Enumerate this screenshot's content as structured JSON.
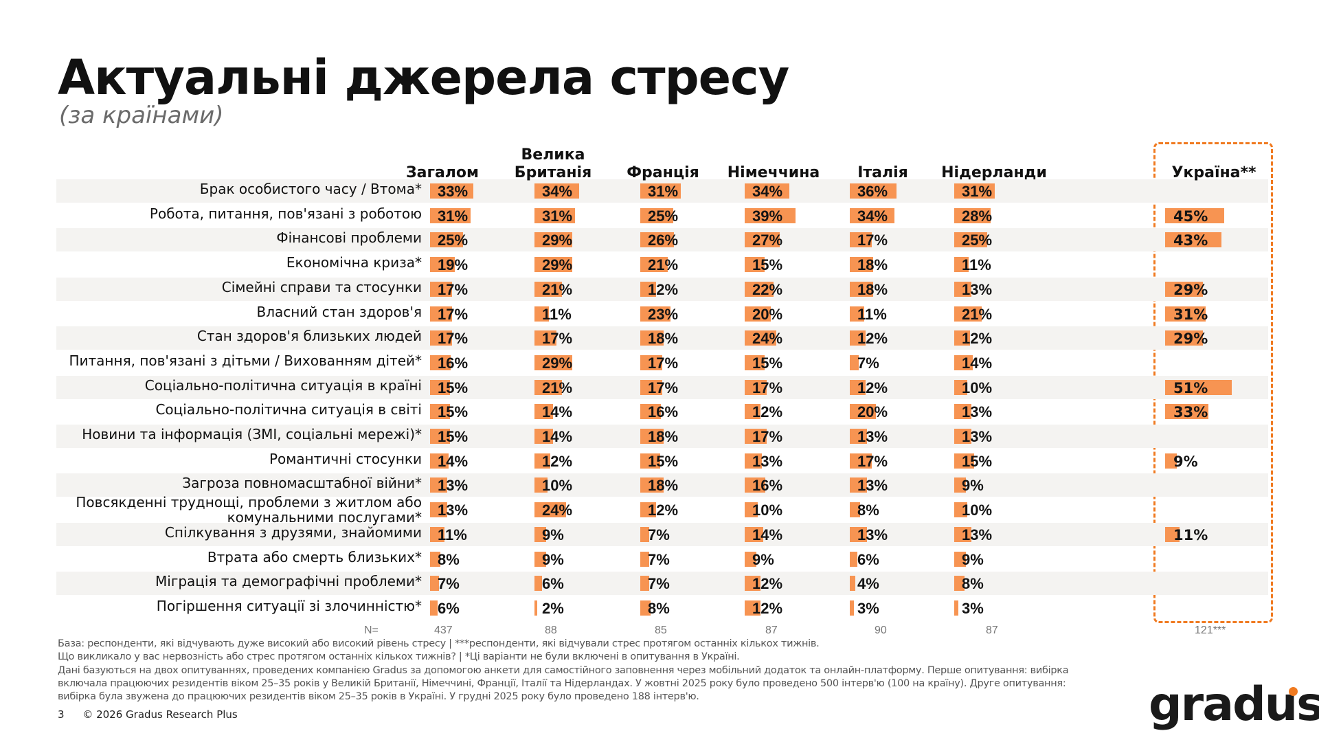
{
  "title": "Актуальні джерела стресу",
  "subtitle": "(за країнами)",
  "chart_data": {
    "type": "bar",
    "orientation": "horizontal",
    "columns": [
      "Загалом",
      "Велика Британія",
      "Франція",
      "Німеччина",
      "Італія",
      "Нідерланди",
      "Україна**"
    ],
    "categories": [
      "Брак особистого часу / Втома*",
      "Робота, питання, пов'язані з роботою",
      "Фінансові проблеми",
      "Економічна криза*",
      "Сімейні справи та стосунки",
      "Власний стан здоров'я",
      "Стан здоров'я близьких людей",
      "Питання, пов'язані з дітьми / Вихованням дітей*",
      "Соціально-політична ситуація в країні",
      "Соціально-політична ситуація в світі",
      "Новини та інформація (ЗМІ, соціальні мережі)*",
      "Романтичні стосунки",
      "Загроза повномасштабної війни*",
      "Повсякденні труднощі, проблеми з житлом або комунальними послугами*",
      "Спілкування з друзями, знайомими",
      "Втрата або смерть близьких*",
      "Міграція та демографічні проблеми*",
      "Погіршення ситуації зі злочинністю*"
    ],
    "series": [
      {
        "name": "Загалом",
        "values": [
          33,
          31,
          25,
          19,
          17,
          17,
          17,
          16,
          15,
          15,
          15,
          14,
          13,
          13,
          11,
          8,
          7,
          6
        ]
      },
      {
        "name": "Велика Британія",
        "values": [
          34,
          31,
          29,
          29,
          21,
          11,
          17,
          29,
          21,
          14,
          14,
          12,
          10,
          24,
          9,
          9,
          6,
          2
        ]
      },
      {
        "name": "Франція",
        "values": [
          31,
          25,
          26,
          21,
          12,
          23,
          18,
          17,
          17,
          16,
          18,
          15,
          18,
          12,
          7,
          7,
          7,
          8
        ]
      },
      {
        "name": "Німеччина",
        "values": [
          34,
          39,
          27,
          15,
          22,
          20,
          24,
          15,
          17,
          12,
          17,
          13,
          16,
          10,
          14,
          9,
          12,
          12
        ]
      },
      {
        "name": "Італія",
        "values": [
          36,
          34,
          17,
          18,
          18,
          11,
          12,
          7,
          12,
          20,
          13,
          17,
          13,
          8,
          13,
          6,
          4,
          3
        ]
      },
      {
        "name": "Нідерланди",
        "values": [
          31,
          28,
          25,
          11,
          13,
          21,
          12,
          14,
          10,
          13,
          13,
          15,
          9,
          10,
          13,
          9,
          8,
          3
        ]
      },
      {
        "name": "Україна**",
        "values": [
          null,
          45,
          43,
          null,
          29,
          31,
          29,
          null,
          51,
          33,
          null,
          9,
          null,
          null,
          11,
          null,
          null,
          null
        ]
      }
    ],
    "unit": "%",
    "n_label": "N=",
    "n_values": [
      "437",
      "88",
      "85",
      "87",
      "90",
      "87",
      "121***"
    ],
    "highlight_column": "Україна**"
  },
  "colors": {
    "bar": "#f79452",
    "highlight_border": "#f07a20",
    "stripe": "#f4f3f1"
  },
  "footnotes": [
    "База: респонденти, які відчувають дуже високий або високий рівень стресу | ***респонденти, які відчували стрес протягом останніх кількох тижнів.",
    "Що викликало у вас нервозність або стрес протягом останніх кількох тижнів? | *Ці варіанти не були включені в опитування в Україні.",
    "Дані базуються на двох опитуваннях, проведених компанією Gradus за допомогою анкети для самостійного заповнення через мобільний додаток та онлайн-платформу. Перше опитування: вибірка включала працюючих резидентів віком 25–35 років у Великій Британії, Німеччині, Франції, Італії та Нідерландах. У жовтні 2025 року було проведено 500 інтерв'ю (100 на країну). Друге опитування: вибірка була звужена до працюючих резидентів віком 25–35 років в Україні. У грудні 2025 року було проведено 188 інтерв'ю."
  ],
  "page_number": "3",
  "copyright": "© 2026 Gradus Research Plus",
  "logo": "gradus"
}
